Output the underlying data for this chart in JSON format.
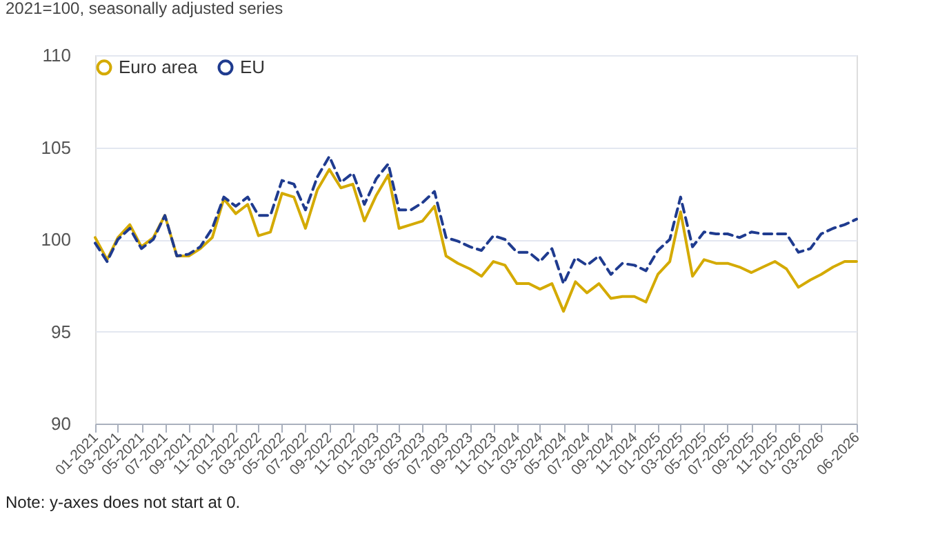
{
  "chart_data": {
    "type": "line",
    "subtitle": "2021=100, seasonally adjusted series",
    "annotations": [
      "Note: y-axes does not start at 0."
    ],
    "x": [
      "2021-01",
      "2021-02",
      "2021-03",
      "2021-04",
      "2021-05",
      "2021-06",
      "2021-07",
      "2021-08",
      "2021-09",
      "2021-10",
      "2021-11",
      "2021-12",
      "2022-01",
      "2022-02",
      "2022-03",
      "2022-04",
      "2022-05",
      "2022-06",
      "2022-07",
      "2022-08",
      "2022-09",
      "2022-10",
      "2022-11",
      "2022-12",
      "2023-01",
      "2023-02",
      "2023-03",
      "2023-04",
      "2023-05",
      "2023-06",
      "2023-07",
      "2023-08",
      "2023-09",
      "2023-10",
      "2023-11",
      "2023-12",
      "2024-01",
      "2024-02",
      "2024-03",
      "2024-04",
      "2024-05",
      "2024-06",
      "2024-07",
      "2024-08",
      "2024-09",
      "2024-10",
      "2024-11",
      "2024-12",
      "2025-01",
      "2025-02",
      "2025-03",
      "2025-04",
      "2025-05",
      "2025-06",
      "2025-07",
      "2025-08",
      "2025-09",
      "2025-10",
      "2025-11",
      "2025-12",
      "2026-01",
      "2026-02",
      "2026-03",
      "2026-04",
      "2026-05",
      "2026-06"
    ],
    "series": [
      {
        "name": "Euro area",
        "color": "#d4aa00",
        "line_style": "solid",
        "values": [
          100.1,
          98.9,
          100.1,
          100.8,
          99.6,
          100.1,
          101.3,
          99.1,
          99.1,
          99.5,
          100.1,
          102.2,
          101.4,
          101.9,
          100.2,
          100.4,
          102.5,
          102.3,
          100.6,
          102.7,
          103.8,
          102.8,
          103.0,
          101.0,
          102.4,
          103.5,
          100.6,
          100.8,
          101.0,
          101.8,
          99.1,
          98.7,
          98.4,
          98.0,
          98.8,
          98.6,
          97.6,
          97.6,
          97.3,
          97.6,
          96.1,
          97.7,
          97.1,
          97.6,
          96.8,
          96.9,
          96.9,
          96.6,
          98.1,
          98.8,
          101.5,
          98.0,
          98.9,
          98.7,
          98.7,
          98.5,
          98.2,
          98.5,
          98.8,
          98.4,
          97.4,
          97.8,
          98.1,
          98.5,
          98.8,
          98.8
        ]
      },
      {
        "name": "EU",
        "color": "#1f3b8f",
        "line_style": "dashed",
        "values": [
          99.8,
          98.8,
          100.0,
          100.6,
          99.5,
          100.0,
          101.3,
          99.1,
          99.2,
          99.6,
          100.6,
          102.3,
          101.8,
          102.3,
          101.3,
          101.3,
          103.2,
          103.0,
          101.6,
          103.4,
          104.5,
          103.1,
          103.6,
          101.9,
          103.3,
          104.1,
          101.6,
          101.6,
          102.0,
          102.6,
          100.1,
          99.9,
          99.6,
          99.4,
          100.2,
          100.0,
          99.3,
          99.3,
          98.8,
          99.5,
          97.6,
          99.0,
          98.6,
          99.1,
          98.1,
          98.7,
          98.6,
          98.3,
          99.4,
          100.0,
          102.3,
          99.6,
          100.4,
          100.3,
          100.3,
          100.1,
          100.4,
          100.3,
          100.3,
          100.3,
          99.3,
          99.5,
          100.3,
          100.6,
          100.8,
          101.1
        ]
      }
    ],
    "xlim": [
      "2021-01",
      "2026-06"
    ],
    "xticks": [
      {
        "value": "2021-01",
        "label": "01-2021"
      },
      {
        "value": "2021-03",
        "label": "03-2021"
      },
      {
        "value": "2021-05",
        "label": "05-2021"
      },
      {
        "value": "2021-07",
        "label": "07-2021"
      },
      {
        "value": "2021-09",
        "label": "09-2021"
      },
      {
        "value": "2021-11",
        "label": "11-2021"
      },
      {
        "value": "2022-01",
        "label": "01-2022"
      },
      {
        "value": "2022-03",
        "label": "03-2022"
      },
      {
        "value": "2022-05",
        "label": "05-2022"
      },
      {
        "value": "2022-07",
        "label": "07-2022"
      },
      {
        "value": "2022-09",
        "label": "09-2022"
      },
      {
        "value": "2022-11",
        "label": "11-2022"
      },
      {
        "value": "2023-01",
        "label": "01-2023"
      },
      {
        "value": "2023-03",
        "label": "03-2023"
      },
      {
        "value": "2023-05",
        "label": "05-2023"
      },
      {
        "value": "2023-07",
        "label": "07-2023"
      },
      {
        "value": "2023-09",
        "label": "09-2023"
      },
      {
        "value": "2023-11",
        "label": "11-2023"
      },
      {
        "value": "2024-01",
        "label": "01-2024"
      },
      {
        "value": "2024-03",
        "label": "03-2024"
      },
      {
        "value": "2024-05",
        "label": "05-2024"
      },
      {
        "value": "2024-07",
        "label": "07-2024"
      },
      {
        "value": "2024-09",
        "label": "09-2024"
      },
      {
        "value": "2024-11",
        "label": "11-2024"
      },
      {
        "value": "2025-01",
        "label": "01-2025"
      },
      {
        "value": "2025-03",
        "label": "03-2025"
      },
      {
        "value": "2025-05",
        "label": "05-2025"
      },
      {
        "value": "2025-07",
        "label": "07-2025"
      },
      {
        "value": "2025-09",
        "label": "09-2025"
      },
      {
        "value": "2025-11",
        "label": "11-2025"
      },
      {
        "value": "2026-01",
        "label": "01-2026"
      },
      {
        "value": "2026-03",
        "label": "03-2026"
      },
      {
        "value": "2026-06",
        "label": "06-2026"
      }
    ],
    "ylim": [
      90,
      110
    ],
    "yticks": [
      90,
      95,
      100,
      105,
      110
    ],
    "grid": "y",
    "legend": "top",
    "marker": "none"
  }
}
